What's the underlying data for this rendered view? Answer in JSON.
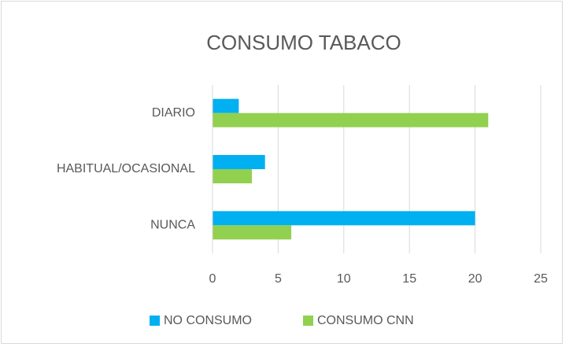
{
  "chart_data": {
    "type": "barh",
    "title": "CONSUMO TABACO",
    "categories": [
      "DIARIO",
      "HABITUAL/OCASIONAL",
      "NUNCA"
    ],
    "series": [
      {
        "name": "NO CONSUMO",
        "color": "#00b0f0",
        "values": [
          2,
          4,
          20
        ]
      },
      {
        "name": "CONSUMO CNN",
        "color": "#92d050",
        "values": [
          21,
          3,
          6
        ]
      }
    ],
    "xlim": [
      0,
      25
    ],
    "xticks": [
      0,
      5,
      10,
      15,
      20,
      25
    ],
    "grid": true,
    "legend": "bottom"
  }
}
